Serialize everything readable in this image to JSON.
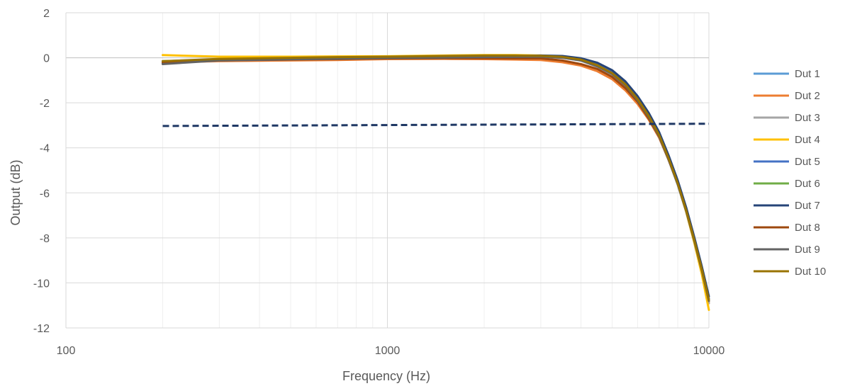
{
  "chart_data": {
    "type": "line",
    "title": "",
    "xlabel": "Frequency (Hz)",
    "ylabel": "Output (dB)",
    "xscale": "log",
    "xlim": [
      100,
      10000
    ],
    "ylim": [
      -12,
      2
    ],
    "x_ticks": [
      100,
      1000,
      10000
    ],
    "x_tick_labels": [
      "100",
      "1000",
      "10000"
    ],
    "y_ticks": [
      2,
      0,
      -2,
      -4,
      -6,
      -8,
      -10,
      -12
    ],
    "y_tick_labels": [
      "2",
      "0",
      "-2",
      "-4",
      "-6",
      "-8",
      "-10",
      "-12"
    ],
    "grid": true,
    "legend_position": "right",
    "x": [
      200,
      300,
      500,
      700,
      1000,
      1500,
      2000,
      2500,
      3000,
      3500,
      4000,
      4500,
      5000,
      5500,
      6000,
      6500,
      7000,
      7500,
      8000,
      8500,
      9000,
      9500,
      10000
    ],
    "series": [
      {
        "name": "Dut 1",
        "color": "#5B9BD5",
        "values": [
          -0.15,
          -0.08,
          -0.05,
          -0.03,
          0,
          0.02,
          0.04,
          0.05,
          0.06,
          0.02,
          -0.1,
          -0.35,
          -0.7,
          -1.2,
          -1.85,
          -2.6,
          -3.45,
          -4.5,
          -5.6,
          -6.8,
          -8.1,
          -9.4,
          -10.8
        ]
      },
      {
        "name": "Dut 2",
        "color": "#ED7D31",
        "values": [
          -0.2,
          -0.15,
          -0.12,
          -0.1,
          -0.06,
          -0.05,
          -0.06,
          -0.08,
          -0.1,
          -0.2,
          -0.35,
          -0.6,
          -0.95,
          -1.45,
          -2.05,
          -2.75,
          -3.55,
          -4.55,
          -5.6,
          -6.8,
          -8.1,
          -9.4,
          -10.9
        ]
      },
      {
        "name": "Dut 3",
        "color": "#A5A5A5",
        "values": [
          -0.18,
          -0.1,
          -0.07,
          -0.04,
          -0.01,
          0.01,
          0.03,
          0.04,
          0.04,
          0,
          -0.13,
          -0.4,
          -0.75,
          -1.25,
          -1.9,
          -2.65,
          -3.5,
          -4.55,
          -5.65,
          -6.85,
          -8.15,
          -9.45,
          -10.9
        ]
      },
      {
        "name": "Dut 4",
        "color": "#FFC000",
        "values": [
          0.12,
          0.05,
          0.05,
          0.06,
          0.07,
          0.1,
          0.12,
          0.12,
          0.1,
          0.04,
          -0.1,
          -0.35,
          -0.7,
          -1.2,
          -1.85,
          -2.6,
          -3.45,
          -4.5,
          -5.6,
          -6.85,
          -8.2,
          -9.6,
          -11.2
        ]
      },
      {
        "name": "Dut 5",
        "color": "#4472C4",
        "values": [
          -0.2,
          -0.1,
          -0.06,
          -0.03,
          0,
          0.02,
          0.04,
          0.05,
          0.06,
          0.03,
          -0.08,
          -0.3,
          -0.65,
          -1.15,
          -1.8,
          -2.55,
          -3.4,
          -4.45,
          -5.55,
          -6.75,
          -8.05,
          -9.35,
          -10.7
        ]
      },
      {
        "name": "Dut 6",
        "color": "#70AD47",
        "values": [
          -0.15,
          -0.08,
          -0.03,
          0,
          0.02,
          0.05,
          0.07,
          0.08,
          0.07,
          0.02,
          -0.1,
          -0.35,
          -0.7,
          -1.2,
          -1.85,
          -2.6,
          -3.45,
          -4.5,
          -5.6,
          -6.8,
          -8.1,
          -9.4,
          -10.8
        ]
      },
      {
        "name": "Dut 7",
        "color": "#264478",
        "values": [
          -0.25,
          -0.1,
          -0.05,
          -0.02,
          0.01,
          0.03,
          0.06,
          0.08,
          0.1,
          0.08,
          -0.02,
          -0.22,
          -0.55,
          -1.05,
          -1.7,
          -2.45,
          -3.3,
          -4.35,
          -5.45,
          -6.65,
          -7.95,
          -9.25,
          -10.6
        ]
      },
      {
        "name": "Dut 8",
        "color": "#9E480E",
        "values": [
          -0.2,
          -0.12,
          -0.08,
          -0.06,
          -0.03,
          -0.02,
          -0.02,
          -0.03,
          -0.03,
          -0.12,
          -0.28,
          -0.5,
          -0.85,
          -1.35,
          -1.95,
          -2.7,
          -3.5,
          -4.55,
          -5.6,
          -6.8,
          -8.1,
          -9.4,
          -10.8
        ]
      },
      {
        "name": "Dut 9",
        "color": "#636363",
        "values": [
          -0.28,
          -0.12,
          -0.07,
          -0.04,
          -0.01,
          0.01,
          0.03,
          0.04,
          0.05,
          0,
          -0.12,
          -0.38,
          -0.72,
          -1.22,
          -1.88,
          -2.63,
          -3.48,
          -4.53,
          -5.62,
          -6.82,
          -8.12,
          -9.42,
          -10.8
        ]
      },
      {
        "name": "Dut 10",
        "color": "#997300",
        "values": [
          -0.15,
          -0.05,
          0,
          0.03,
          0.05,
          0.08,
          0.1,
          0.1,
          0.09,
          0.04,
          -0.08,
          -0.33,
          -0.68,
          -1.18,
          -1.83,
          -2.58,
          -3.43,
          -4.48,
          -5.58,
          -6.78,
          -8.08,
          -9.38,
          -10.75
        ]
      }
    ],
    "reference_line": {
      "x": [
        200,
        10000
      ],
      "values": [
        -3.03,
        -2.93
      ],
      "color": "#1F3864",
      "style": "dashed"
    }
  }
}
